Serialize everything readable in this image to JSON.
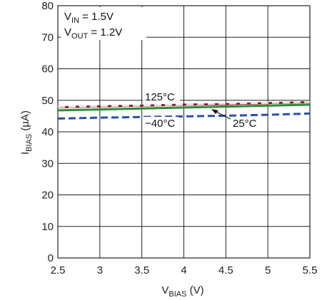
{
  "chart_data": {
    "type": "line",
    "xlabel": {
      "main": "V",
      "sub": "BIAS",
      "suffix": " (V)"
    },
    "ylabel": {
      "main": "I",
      "sub": "BIAS",
      "suffix": " (µA)"
    },
    "xlim": [
      2.5,
      5.5
    ],
    "ylim": [
      0,
      80
    ],
    "x_ticks": [
      "2.5",
      "3",
      "3.5",
      "4",
      "4.5",
      "5",
      "5.5"
    ],
    "y_ticks": [
      "0",
      "10",
      "20",
      "30",
      "40",
      "50",
      "60",
      "70",
      "80"
    ],
    "grid": true,
    "conditions": [
      {
        "main": "V",
        "sub": "IN",
        "suffix": " = 1.5V"
      },
      {
        "main": "V",
        "sub": "OUT",
        "suffix": " = 1.2V"
      }
    ],
    "series": [
      {
        "name": "125°C",
        "color": "#8b1a2b",
        "dash": false,
        "x": [
          2.5,
          3.0,
          3.5,
          4.0,
          4.5,
          5.0,
          5.5
        ],
        "y": [
          47.8,
          48.1,
          48.3,
          48.6,
          48.8,
          49.1,
          49.4
        ]
      },
      {
        "name": "25°C",
        "color": "#2e8b3a",
        "dash": false,
        "x": [
          2.5,
          3.0,
          3.5,
          4.0,
          4.5,
          5.0,
          5.5
        ],
        "y": [
          46.8,
          47.1,
          47.4,
          47.7,
          48.0,
          48.3,
          48.6
        ]
      },
      {
        "name": "",
        "color": "#e8e8e8",
        "dash": true,
        "x": [
          2.5,
          3.0,
          3.5,
          4.0,
          4.5,
          5.0,
          5.5
        ],
        "y": [
          47.9,
          48.2,
          48.4,
          48.7,
          49.0,
          49.2,
          49.5
        ]
      },
      {
        "name": "−40°C",
        "color": "#2b4fa8",
        "dash": true,
        "x": [
          2.5,
          3.0,
          3.5,
          4.0,
          4.5,
          5.0,
          5.5
        ],
        "y": [
          44.2,
          44.5,
          44.7,
          44.9,
          45.1,
          45.4,
          45.8
        ]
      }
    ],
    "annotations": [
      "125°C",
      "−40°C",
      "25°C"
    ]
  }
}
